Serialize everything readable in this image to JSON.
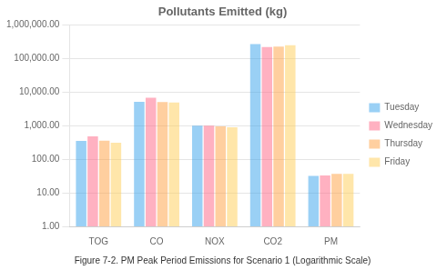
{
  "chart_data": {
    "type": "bar",
    "title": "Pollutants Emitted (kg)",
    "caption": "Figure 7-2. PM Peak Period Emissions for Scenario 1 (Logarithmic Scale)",
    "categories": [
      "TOG",
      "CO",
      "NOX",
      "CO2",
      "PM"
    ],
    "series": [
      {
        "name": "Tuesday",
        "values": [
          350,
          5200,
          1000,
          270000,
          32
        ]
      },
      {
        "name": "Wednesday",
        "values": [
          480,
          6800,
          1000,
          220000,
          33
        ]
      },
      {
        "name": "Thursday",
        "values": [
          360,
          5100,
          950,
          230000,
          37
        ]
      },
      {
        "name": "Friday",
        "values": [
          310,
          4900,
          900,
          250000,
          37
        ]
      }
    ],
    "log": "y",
    "ylim": [
      1.0,
      1000000.0
    ],
    "yticks": [
      {
        "value": 1,
        "label": "1.00"
      },
      {
        "value": 10,
        "label": "10.00"
      },
      {
        "value": 100,
        "label": "100.00"
      },
      {
        "value": 1000,
        "label": "1,000.00"
      },
      {
        "value": 10000,
        "label": "10,000.00"
      },
      {
        "value": 100000,
        "label": "100,000.00"
      },
      {
        "value": 1000000,
        "label": "1,000,000.00"
      }
    ],
    "grid": true,
    "legend": "right"
  }
}
